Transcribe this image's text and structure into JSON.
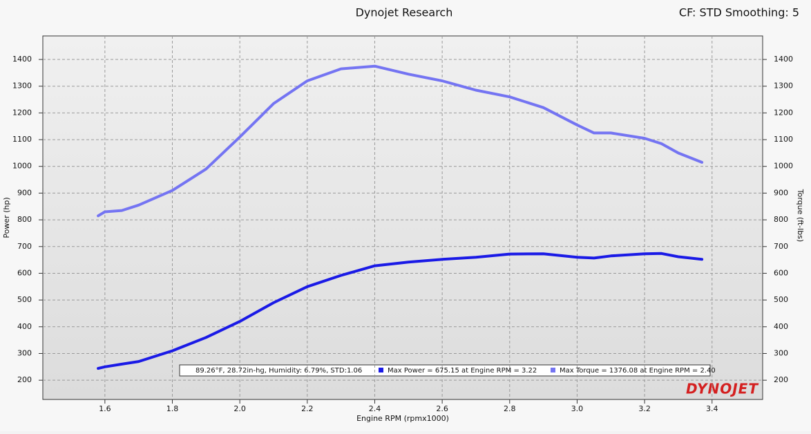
{
  "chart_data": {
    "type": "line",
    "title": "Dynojet Research",
    "subtitle": "CF: STD Smoothing: 5",
    "xlabel": "Engine RPM (rpmx1000)",
    "ylabel": "Power (hp)",
    "y2label": "Torque (ft-lbs)",
    "conditions": "89.26°F, 28.72in-hg, Humidity: 6.79%, STD:1.06",
    "logo": "DYNOJET",
    "x": [
      1.58,
      1.6,
      1.65,
      1.7,
      1.8,
      1.9,
      2.0,
      2.1,
      2.2,
      2.3,
      2.4,
      2.5,
      2.6,
      2.7,
      2.8,
      2.9,
      3.0,
      3.05,
      3.1,
      3.2,
      3.25,
      3.3,
      3.37
    ],
    "series": [
      {
        "name": "Max Power = 675.15 at Engine RPM = 3.22",
        "color": "#1a1ae6",
        "values": [
          244,
          250,
          260,
          270,
          310,
          360,
          420,
          490,
          550,
          592,
          628,
          642,
          652,
          660,
          672,
          673,
          660,
          657,
          665,
          673,
          674,
          662,
          652
        ]
      },
      {
        "name": "Max Torque = 1376.08 at Engine RPM = 2.40",
        "color": "#7474f2",
        "axis": "y2",
        "values": [
          815,
          830,
          835,
          855,
          910,
          990,
          1110,
          1235,
          1320,
          1365,
          1375,
          1345,
          1320,
          1285,
          1260,
          1220,
          1155,
          1125,
          1125,
          1105,
          1085,
          1050,
          1015
        ]
      }
    ],
    "xlim": [
      1.416,
      3.55
    ],
    "xticks": [
      1.6,
      1.8,
      {
        "value": 2,
        "label": "2.0"
      },
      2.2,
      2.4,
      2.6,
      2.8,
      {
        "value": 3,
        "label": "3.0"
      },
      3.2,
      3.4
    ],
    "ylim": [
      128,
      1488
    ],
    "yticks": [
      200,
      300,
      400,
      500,
      600,
      700,
      800,
      900,
      1000,
      1100,
      1200,
      1300,
      1400
    ],
    "y2lim": [
      128,
      1488
    ],
    "y2ticks": [
      200,
      300,
      400,
      500,
      600,
      700,
      800,
      900,
      1000,
      1100,
      1200,
      1300,
      1400
    ],
    "grid": true
  }
}
